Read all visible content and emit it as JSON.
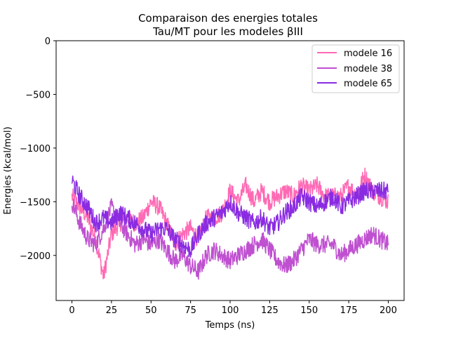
{
  "chart_data": {
    "type": "line",
    "title": "Comparaison des energies totales",
    "subtitle": "Tau/MT pour les modeles βIII",
    "xlabel": "Temps (ns)",
    "ylabel": "Energies (kcal/mol)",
    "xlim": [
      -10,
      210
    ],
    "ylim": [
      -2420,
      0
    ],
    "x_ticks": [
      0,
      25,
      50,
      75,
      100,
      125,
      150,
      175,
      200
    ],
    "y_ticks": [
      0,
      -500,
      -1000,
      -1500,
      -2000
    ],
    "y_tick_labels": [
      "0",
      "−500",
      "−1000",
      "−1500",
      "−2000"
    ],
    "grid": false,
    "legend_position": "top-right",
    "series": [
      {
        "name": "modele 16",
        "color": "#ff69b4",
        "x": [
          0,
          5,
          10,
          15,
          20,
          25,
          30,
          35,
          40,
          45,
          50,
          55,
          60,
          65,
          70,
          75,
          80,
          85,
          90,
          95,
          100,
          105,
          110,
          115,
          120,
          125,
          130,
          135,
          140,
          145,
          150,
          155,
          160,
          165,
          170,
          175,
          180,
          185,
          190,
          195,
          200
        ],
        "values": [
          -1450,
          -1550,
          -1650,
          -1850,
          -2200,
          -1800,
          -1700,
          -1650,
          -1700,
          -1650,
          -1500,
          -1550,
          -1700,
          -1900,
          -1800,
          -1750,
          -1850,
          -1650,
          -1650,
          -1600,
          -1400,
          -1500,
          -1350,
          -1500,
          -1400,
          -1500,
          -1450,
          -1400,
          -1450,
          -1350,
          -1400,
          -1350,
          -1450,
          -1450,
          -1450,
          -1350,
          -1450,
          -1250,
          -1400,
          -1450,
          -1500
        ]
      },
      {
        "name": "modele 38",
        "color": "#bf50d0",
        "x": [
          0,
          5,
          10,
          15,
          20,
          25,
          30,
          35,
          40,
          45,
          50,
          55,
          60,
          65,
          70,
          75,
          80,
          85,
          90,
          95,
          100,
          105,
          110,
          115,
          120,
          125,
          130,
          135,
          140,
          145,
          150,
          155,
          160,
          165,
          170,
          175,
          180,
          185,
          190,
          195,
          200
        ],
        "values": [
          -1500,
          -1700,
          -1850,
          -1900,
          -1750,
          -1550,
          -1700,
          -1800,
          -1900,
          -1850,
          -1900,
          -1850,
          -1950,
          -2050,
          -2000,
          -2100,
          -2150,
          -2000,
          -1950,
          -2000,
          -2050,
          -2000,
          -1950,
          -1900,
          -1850,
          -1950,
          -2050,
          -2100,
          -2050,
          -1950,
          -1850,
          -1900,
          -1900,
          -1900,
          -2000,
          -1950,
          -1900,
          -1850,
          -1800,
          -1850,
          -1900
        ]
      },
      {
        "name": "modele 65",
        "color": "#8a2be2",
        "x": [
          0,
          5,
          10,
          15,
          20,
          25,
          30,
          35,
          40,
          45,
          50,
          55,
          60,
          65,
          70,
          75,
          80,
          85,
          90,
          95,
          100,
          105,
          110,
          115,
          120,
          125,
          130,
          135,
          140,
          145,
          150,
          155,
          160,
          165,
          170,
          175,
          180,
          185,
          190,
          195,
          200
        ],
        "values": [
          -1300,
          -1450,
          -1550,
          -1700,
          -1650,
          -1700,
          -1600,
          -1650,
          -1700,
          -1750,
          -1800,
          -1750,
          -1750,
          -1850,
          -1900,
          -1950,
          -1800,
          -1700,
          -1650,
          -1600,
          -1500,
          -1600,
          -1650,
          -1700,
          -1650,
          -1750,
          -1700,
          -1600,
          -1550,
          -1450,
          -1500,
          -1550,
          -1500,
          -1450,
          -1550,
          -1500,
          -1450,
          -1400,
          -1400,
          -1400,
          -1400
        ]
      }
    ]
  }
}
